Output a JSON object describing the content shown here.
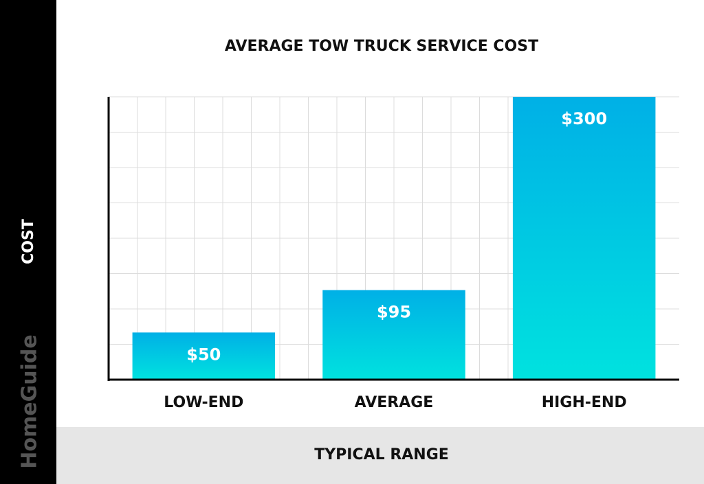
{
  "brand": "HomeGuide",
  "chart_data": {
    "type": "bar",
    "title": "AVERAGE TOW TRUCK SERVICE COST",
    "x_label": "TYPICAL RANGE",
    "y_label": "COST",
    "categories": [
      "LOW-END",
      "AVERAGE",
      "HIGH-END"
    ],
    "values": [
      50,
      95,
      300
    ],
    "value_labels": [
      "$50",
      "$95",
      "$300"
    ],
    "ylim": [
      0,
      300
    ],
    "yticks": [
      0,
      37.5,
      75,
      112.5,
      150,
      187.5,
      225,
      262.5,
      300
    ],
    "grid": true
  }
}
